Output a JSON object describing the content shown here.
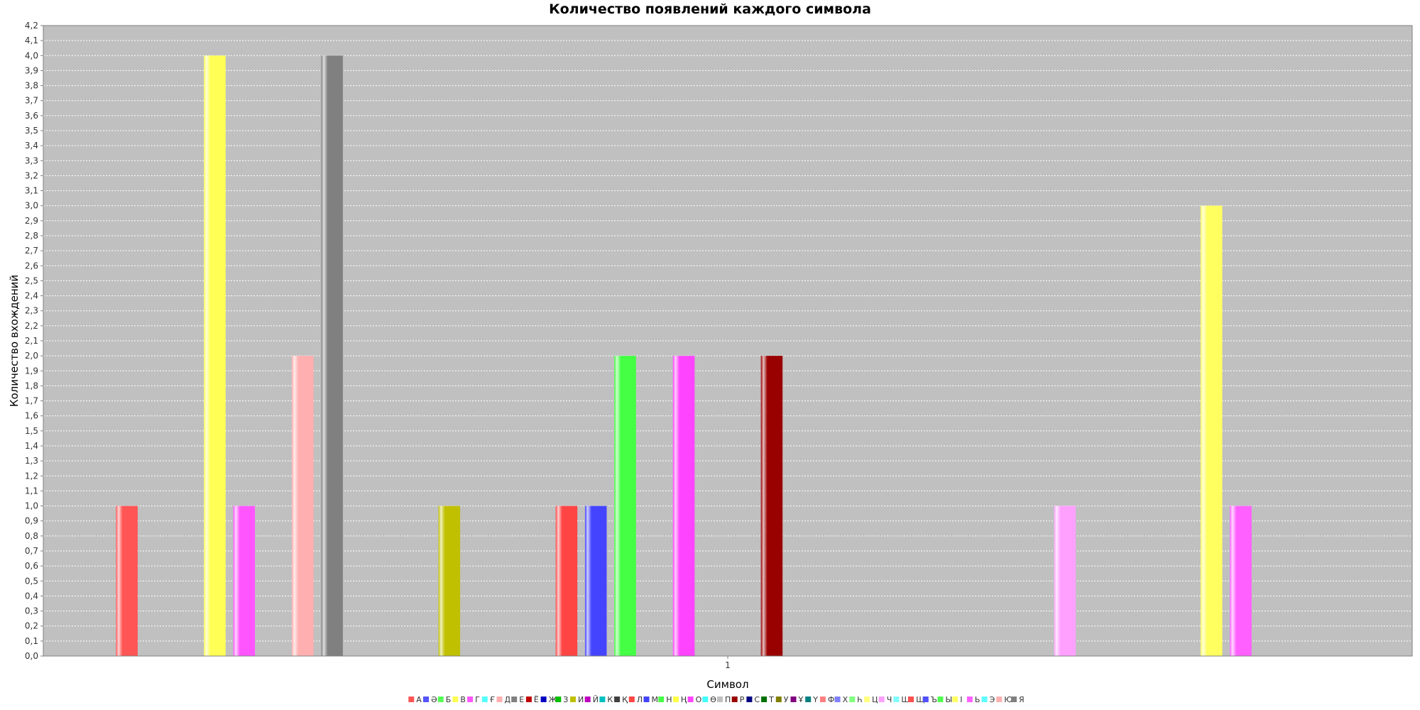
{
  "chart_data": {
    "type": "bar",
    "title": "Количество появлений каждого символа",
    "xlabel": "Символ",
    "ylabel": "Количество вхождений",
    "categories": [
      "1"
    ],
    "ylim": [
      0,
      4.2
    ],
    "ytick_step": 0.1,
    "grid": true,
    "legend_position": "bottom",
    "series": [
      {
        "name": "А",
        "color": "#ff5555",
        "values": [
          1
        ]
      },
      {
        "name": "Ә",
        "color": "#5555ff",
        "values": [
          0
        ]
      },
      {
        "name": "Б",
        "color": "#55ff55",
        "values": [
          0
        ]
      },
      {
        "name": "В",
        "color": "#ffff55",
        "values": [
          4
        ]
      },
      {
        "name": "Г",
        "color": "#ff55ff",
        "values": [
          1
        ]
      },
      {
        "name": "Ғ",
        "color": "#55ffff",
        "values": [
          0
        ]
      },
      {
        "name": "Д",
        "color": "#ffafaf",
        "values": [
          2
        ]
      },
      {
        "name": "Е",
        "color": "#808080",
        "values": [
          4
        ]
      },
      {
        "name": "Ё",
        "color": "#c00000",
        "values": [
          0
        ]
      },
      {
        "name": "Ж",
        "color": "#0000c0",
        "values": [
          0
        ]
      },
      {
        "name": "З",
        "color": "#00c000",
        "values": [
          0
        ]
      },
      {
        "name": "И",
        "color": "#c0c000",
        "values": [
          1
        ]
      },
      {
        "name": "Й",
        "color": "#c000c0",
        "values": [
          0
        ]
      },
      {
        "name": "К",
        "color": "#00c0c0",
        "values": [
          0
        ]
      },
      {
        "name": "Қ",
        "color": "#404040",
        "values": [
          0
        ]
      },
      {
        "name": "Л",
        "color": "#ff4444",
        "values": [
          1
        ]
      },
      {
        "name": "М",
        "color": "#4444ff",
        "values": [
          1
        ]
      },
      {
        "name": "Н",
        "color": "#44ff44",
        "values": [
          2
        ]
      },
      {
        "name": "Ң",
        "color": "#ffff44",
        "values": [
          0
        ]
      },
      {
        "name": "О",
        "color": "#ff44ff",
        "values": [
          2
        ]
      },
      {
        "name": "Ө",
        "color": "#44ffff",
        "values": [
          0
        ]
      },
      {
        "name": "П",
        "color": "#c0c0c0",
        "values": [
          0
        ]
      },
      {
        "name": "Р",
        "color": "#990000",
        "values": [
          2
        ]
      },
      {
        "name": "С",
        "color": "#000080",
        "values": [
          0
        ]
      },
      {
        "name": "Т",
        "color": "#007000",
        "values": [
          0
        ]
      },
      {
        "name": "У",
        "color": "#808000",
        "values": [
          0
        ]
      },
      {
        "name": "Ұ",
        "color": "#800080",
        "values": [
          0
        ]
      },
      {
        "name": "Ү",
        "color": "#008080",
        "values": [
          0
        ]
      },
      {
        "name": "Ф",
        "color": "#ff8080",
        "values": [
          0
        ]
      },
      {
        "name": "Х",
        "color": "#8080ff",
        "values": [
          0
        ]
      },
      {
        "name": "Һ",
        "color": "#80ff80",
        "values": [
          0
        ]
      },
      {
        "name": "Ц",
        "color": "#ffff80",
        "values": [
          0
        ]
      },
      {
        "name": "Ч",
        "color": "#ffa0ff",
        "values": [
          1
        ]
      },
      {
        "name": "Ш",
        "color": "#80ffff",
        "values": [
          0
        ]
      },
      {
        "name": "Щ",
        "color": "#ff5050",
        "values": [
          0
        ]
      },
      {
        "name": "Ъ",
        "color": "#5050ff",
        "values": [
          0
        ]
      },
      {
        "name": "Ы",
        "color": "#50ff50",
        "values": [
          0
        ]
      },
      {
        "name": "І",
        "color": "#ffff60",
        "values": [
          3
        ]
      },
      {
        "name": "Ь",
        "color": "#ff60ff",
        "values": [
          1
        ]
      },
      {
        "name": "Э",
        "color": "#60ffff",
        "values": [
          0
        ]
      },
      {
        "name": "Ю",
        "color": "#ffb0b0",
        "values": [
          0
        ]
      },
      {
        "name": "Я",
        "color": "#808080",
        "values": [
          0
        ]
      }
    ]
  }
}
